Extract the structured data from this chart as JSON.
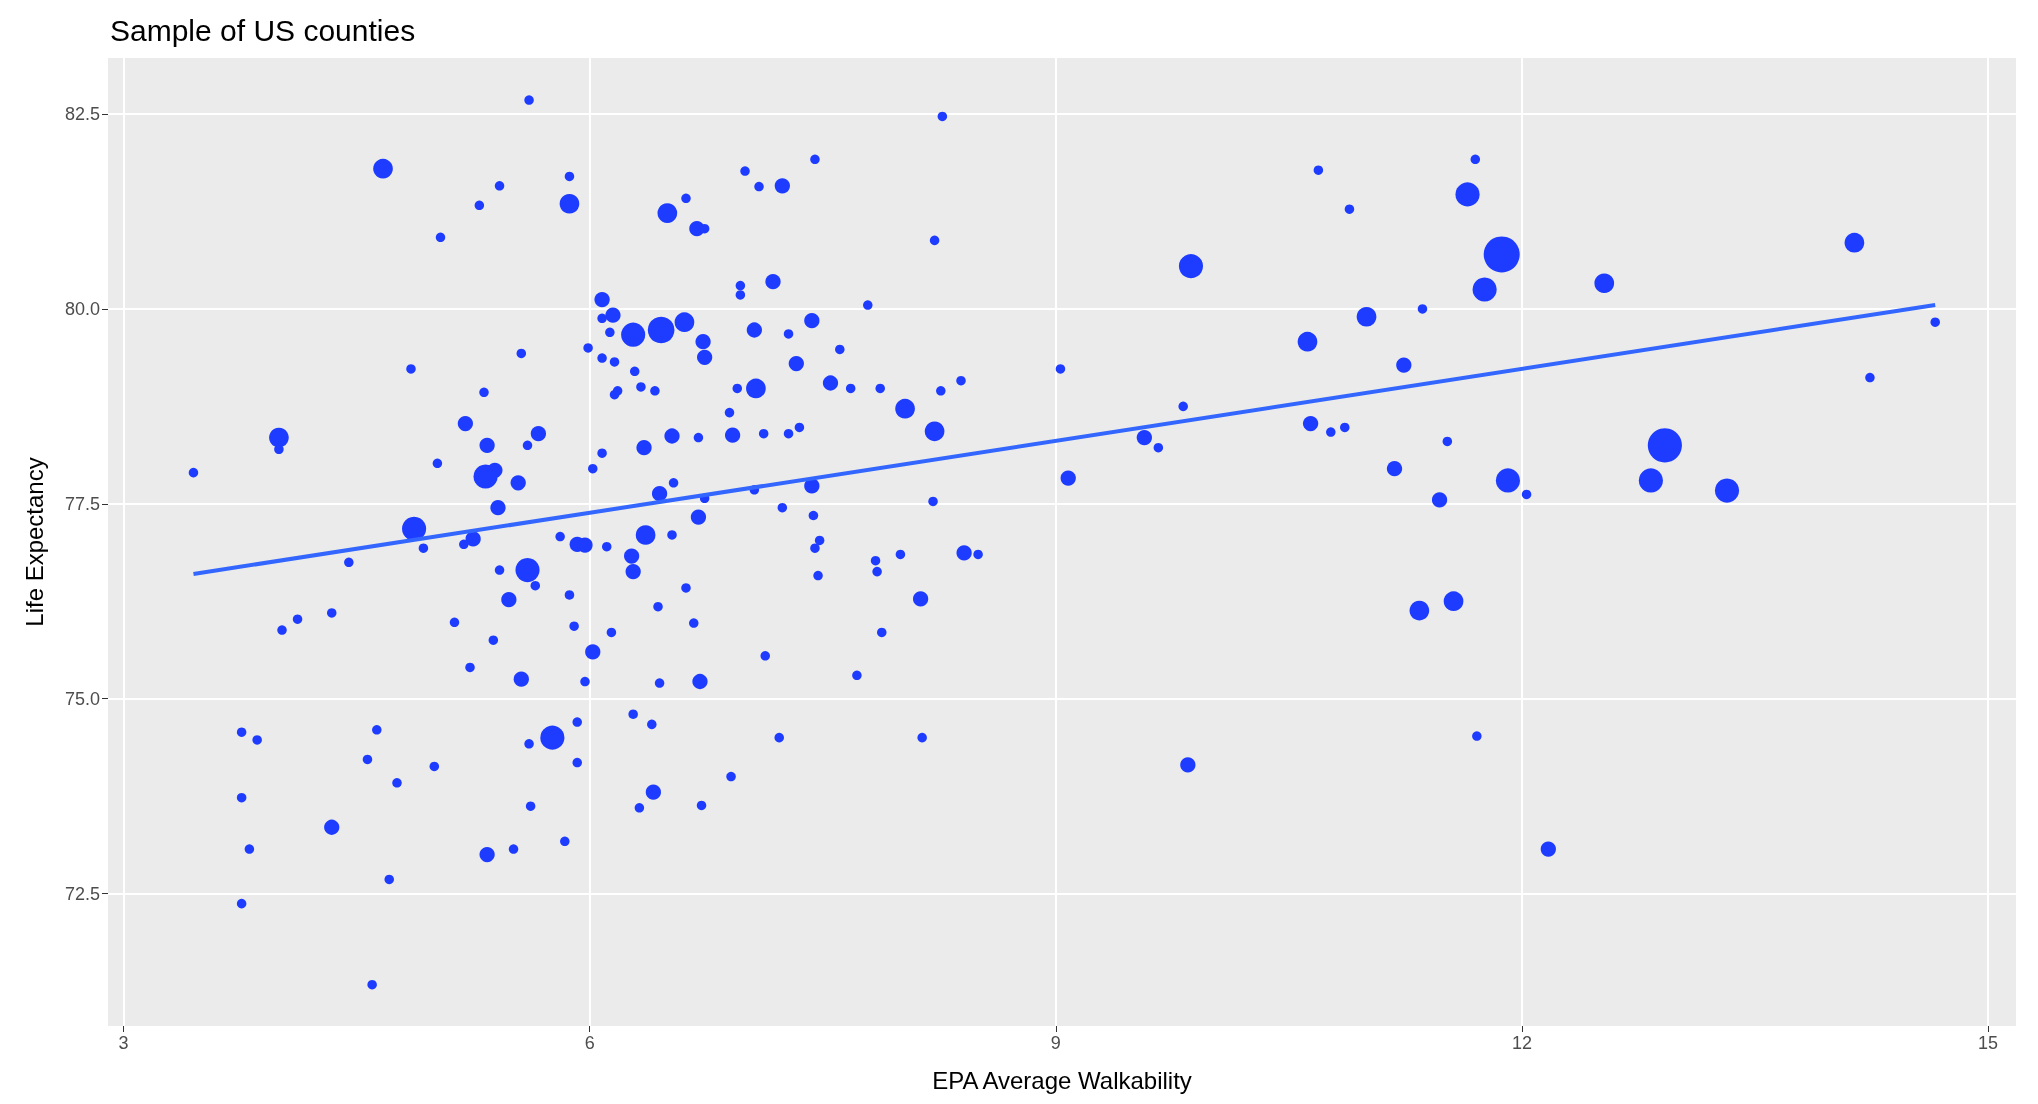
{
  "chart_data": {
    "type": "bubble",
    "title": "Sample of US counties",
    "xlabel": "EPA Average Walkability",
    "ylabel": "Life Expectancy",
    "xlim": [
      2.9,
      15.18
    ],
    "xticks": [
      3,
      6,
      9,
      12,
      15
    ],
    "ylim": [
      70.8,
      83.22
    ],
    "yticks": [
      72.5,
      {
        "value": 75,
        "label": "75.0"
      },
      77.5,
      {
        "value": 80,
        "label": "80.0"
      },
      82.5
    ],
    "grid": true,
    "series": [
      {
        "color": "#1e3cff",
        "marker": "circle",
        "x": [
          3.45,
          4.0,
          4.0,
          3.76,
          3.86,
          3.76,
          3.81,
          3.76,
          4.02,
          4.12,
          4.34,
          4.45,
          4.34,
          4.57,
          4.63,
          4.6,
          4.71,
          4.76,
          4.67,
          4.85,
          4.87,
          4.93,
          5.0,
          5.02,
          5.04,
          5.13,
          5.2,
          5.19,
          5.25,
          5.23,
          5.29,
          5.32,
          5.34,
          5.33,
          5.39,
          5.41,
          5.34,
          5.38,
          5.42,
          5.42,
          5.48,
          5.51,
          5.54,
          5.56,
          5.56,
          5.6,
          5.6,
          5.61,
          5.61,
          5.62,
          5.65,
          5.67,
          5.76,
          5.81,
          5.84,
          5.87,
          5.87,
          5.87,
          5.9,
          5.92,
          5.92,
          5.92,
          5.97,
          5.97,
          5.99,
          6.02,
          6.02,
          6.08,
          6.08,
          6.08,
          6.08,
          6.11,
          6.13,
          6.15,
          6.14,
          6.16,
          6.16,
          6.18,
          6.27,
          6.28,
          6.28,
          6.28,
          6.29,
          6.32,
          6.33,
          6.35,
          6.36,
          6.4,
          6.41,
          6.42,
          6.44,
          6.45,
          6.45,
          6.46,
          6.5,
          6.53,
          6.53,
          6.54,
          6.61,
          6.62,
          6.62,
          6.67,
          6.69,
          6.7,
          6.7,
          6.71,
          6.73,
          6.74,
          6.72,
          6.74,
          6.74,
          6.9,
          6.91,
          6.92,
          6.95,
          6.97,
          6.97,
          7.0,
          7.06,
          7.06,
          7.07,
          7.09,
          7.12,
          7.13,
          7.18,
          7.22,
          7.24,
          7.24,
          7.28,
          7.28,
          7.33,
          7.35,
          7.43,
          7.43,
          7.44,
          7.45,
          7.45,
          7.48,
          7.47,
          7.55,
          7.61,
          7.68,
          7.72,
          7.79,
          7.84,
          7.85,
          7.87,
          7.88,
          8.0,
          8.03,
          8.13,
          8.14,
          8.22,
          8.21,
          8.22,
          8.26,
          8.27,
          8.39,
          8.41,
          8.5,
          9.03,
          9.08,
          9.57,
          9.66,
          9.82,
          9.87,
          9.85,
          10.62,
          10.64,
          10.69,
          10.77,
          10.86,
          10.89,
          11.0,
          11.18,
          11.24,
          11.34,
          11.36,
          11.47,
          11.52,
          11.56,
          11.65,
          11.7,
          11.71,
          11.76,
          11.87,
          11.91,
          12.03,
          12.17,
          12.53,
          12.83,
          12.92,
          13.32,
          14.14,
          14.24,
          14.66
        ],
        "values": [
          77.9,
          78.35,
          78.2,
          74.57,
          74.47,
          73.73,
          73.07,
          72.37,
          75.88,
          76.02,
          76.1,
          76.75,
          73.35,
          74.22,
          74.6,
          71.33,
          72.68,
          73.92,
          81.8,
          79.23,
          77.18,
          76.93,
          74.13,
          78.02,
          80.92,
          75.98,
          78.53,
          76.98,
          77.05,
          75.4,
          81.33,
          78.93,
          78.25,
          77.85,
          77.93,
          77.45,
          73.0,
          75.75,
          81.58,
          76.65,
          76.27,
          73.07,
          77.77,
          79.43,
          75.25,
          76.65,
          78.25,
          74.42,
          82.68,
          73.62,
          76.45,
          78.4,
          74.5,
          77.08,
          73.17,
          81.7,
          81.35,
          76.33,
          75.93,
          76.98,
          74.7,
          74.18,
          76.97,
          75.22,
          79.5,
          77.95,
          75.6,
          80.12,
          79.88,
          78.15,
          79.37,
          76.95,
          79.7,
          79.92,
          75.85,
          79.32,
          78.9,
          78.95,
          76.83,
          79.67,
          76.63,
          74.8,
          79.2,
          73.6,
          79.0,
          78.22,
          77.1,
          74.67,
          73.8,
          78.95,
          76.18,
          77.63,
          75.2,
          79.73,
          81.23,
          77.1,
          78.37,
          77.77,
          79.83,
          81.42,
          76.42,
          75.97,
          81.03,
          77.33,
          78.35,
          75.22,
          79.58,
          79.38,
          73.63,
          81.03,
          77.57,
          78.67,
          74.0,
          78.38,
          78.98,
          80.18,
          80.3,
          81.77,
          79.73,
          77.68,
          78.98,
          81.57,
          78.4,
          75.55,
          80.35,
          74.5,
          81.58,
          77.45,
          79.68,
          78.4,
          79.3,
          78.48,
          77.73,
          79.85,
          77.35,
          81.92,
          76.93,
          77.03,
          76.58,
          79.05,
          79.48,
          78.98,
          75.3,
          80.05,
          76.77,
          76.63,
          78.98,
          75.85,
          76.85,
          78.72,
          76.28,
          74.5,
          80.88,
          77.53,
          78.43,
          78.95,
          82.47,
          79.08,
          76.87,
          76.85,
          79.23,
          77.83,
          78.35,
          78.22,
          78.75,
          80.55,
          74.15,
          79.58,
          78.53,
          81.78,
          78.42,
          78.48,
          81.28,
          79.9,
          77.95,
          79.28,
          76.13,
          80.0,
          77.55,
          78.3,
          76.25,
          81.47,
          81.92,
          74.52,
          80.25,
          80.7,
          77.8,
          77.62,
          73.07,
          80.33,
          77.8,
          78.25,
          77.67,
          80.85,
          79.12,
          79.83
        ],
        "sizes": [
          0.07,
          0.3,
          0.07,
          0.07,
          0.07,
          0.07,
          0.07,
          0.07,
          0.07,
          0.07,
          0.07,
          0.07,
          0.18,
          0.07,
          0.07,
          0.07,
          0.07,
          0.07,
          0.3,
          0.07,
          0.45,
          0.07,
          0.07,
          0.07,
          0.07,
          0.07,
          0.18,
          0.07,
          0.18,
          0.07,
          0.07,
          0.07,
          0.18,
          0.45,
          0.18,
          0.18,
          0.18,
          0.07,
          0.07,
          0.07,
          0.18,
          0.07,
          0.18,
          0.07,
          0.18,
          0.45,
          0.07,
          0.07,
          0.07,
          0.07,
          0.07,
          0.18,
          0.45,
          0.07,
          0.07,
          0.07,
          0.3,
          0.07,
          0.07,
          0.18,
          0.07,
          0.07,
          0.18,
          0.07,
          0.07,
          0.07,
          0.18,
          0.18,
          0.07,
          0.07,
          0.07,
          0.07,
          0.07,
          0.18,
          0.07,
          0.07,
          0.07,
          0.07,
          0.18,
          0.45,
          0.18,
          0.07,
          0.07,
          0.07,
          0.07,
          0.18,
          0.3,
          0.07,
          0.18,
          0.07,
          0.07,
          0.18,
          0.07,
          0.55,
          0.3,
          0.07,
          0.18,
          0.07,
          0.3,
          0.07,
          0.07,
          0.07,
          0.18,
          0.18,
          0.07,
          0.18,
          0.18,
          0.18,
          0.07,
          0.07,
          0.07,
          0.07,
          0.07,
          0.18,
          0.07,
          0.07,
          0.07,
          0.07,
          0.18,
          0.07,
          0.3,
          0.07,
          0.07,
          0.07,
          0.18,
          0.07,
          0.18,
          0.07,
          0.07,
          0.07,
          0.18,
          0.07,
          0.18,
          0.18,
          0.07,
          0.07,
          0.07,
          0.07,
          0.07,
          0.18,
          0.07,
          0.07,
          0.07,
          0.07,
          0.07,
          0.07,
          0.07,
          0.07,
          0.07,
          0.3,
          0.18,
          0.07,
          0.07,
          0.07,
          0.3,
          0.07,
          0.07,
          0.07,
          0.18,
          0.07,
          0.07,
          0.18,
          0.18,
          0.07,
          0.07,
          0.45,
          0.18,
          0.3,
          0.18,
          0.07,
          0.07,
          0.07,
          0.07,
          0.3,
          0.18,
          0.18,
          0.3,
          0.07,
          0.18,
          0.07,
          0.3,
          0.45,
          0.07,
          0.07,
          0.45,
          1,
          0.45,
          0.07,
          0.18,
          0.3,
          0.45,
          0.9,
          0.45,
          0.3,
          0.07,
          0.07
        ]
      },
      {
        "type": "line",
        "color": "#3366ff",
        "marker": "none",
        "x": [
          3.45,
          14.66
        ],
        "values": [
          76.6,
          80.05
        ]
      }
    ]
  }
}
